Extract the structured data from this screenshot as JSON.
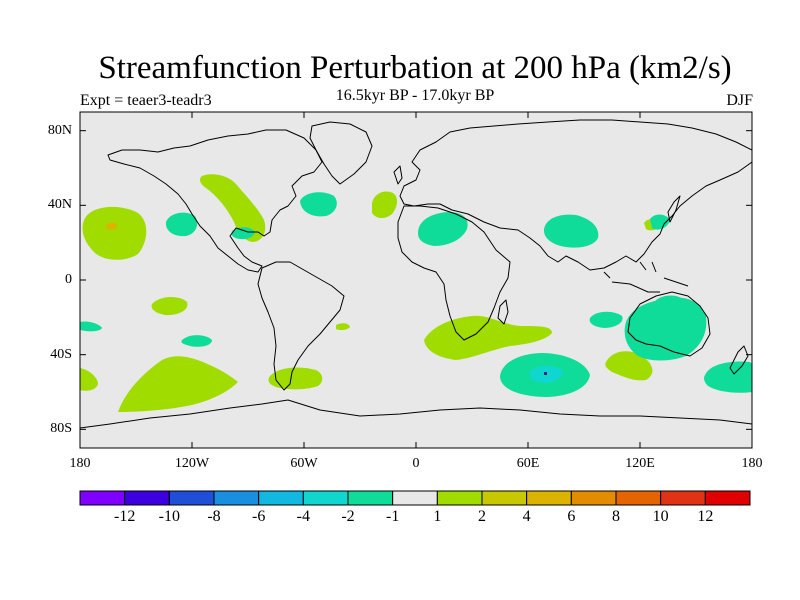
{
  "title": "Streamfunction Perturbation at 200 hPa (km2/s)",
  "subtitle": "16.5kyr BP - 17.0kyr BP",
  "left_label": "Expt = teaer3-teadr3",
  "right_label": "DJF",
  "lat_ticks": [
    {
      "value": 80,
      "label": "80N"
    },
    {
      "value": 40,
      "label": "40N"
    },
    {
      "value": 0,
      "label": "0"
    },
    {
      "value": -40,
      "label": "40S"
    },
    {
      "value": -80,
      "label": "80S"
    }
  ],
  "lon_ticks": [
    {
      "value": -180,
      "label": "180"
    },
    {
      "value": -120,
      "label": "120W"
    },
    {
      "value": -60,
      "label": "60W"
    },
    {
      "value": 0,
      "label": "0"
    },
    {
      "value": 60,
      "label": "60E"
    },
    {
      "value": 120,
      "label": "120E"
    },
    {
      "value": 180,
      "label": "180"
    }
  ],
  "colorbar": {
    "colors": [
      "#7f00ff",
      "#3c00e0",
      "#1f4fd8",
      "#1a8fe0",
      "#11b8e0",
      "#10d6d0",
      "#10dc9a",
      "#e8e8e8",
      "#a0dc00",
      "#c8c800",
      "#dcb400",
      "#e48c00",
      "#e46400",
      "#e03214",
      "#e00000"
    ],
    "labels": [
      "-12",
      "-10",
      "-8",
      "-6",
      "-4",
      "-2",
      "-1",
      "1",
      "2",
      "4",
      "6",
      "8",
      "10",
      "12"
    ]
  },
  "chart_data": {
    "type": "heatmap",
    "title": "Streamfunction Perturbation at 200 hPa (km2/s)",
    "subtitle": "16.5kyr BP - 17.0kyr BP",
    "season": "DJF",
    "experiment": "teaer3-teadr3",
    "projection": "cylindrical equidistant",
    "lon_range": [
      -180,
      180
    ],
    "lat_range": [
      -90,
      90
    ],
    "units": "km2/s",
    "levels": [
      -12,
      -10,
      -8,
      -6,
      -4,
      -2,
      -1,
      1,
      2,
      4,
      6,
      8,
      10,
      12
    ],
    "colors": {
      "neutral": "#e8e8e8",
      "pos2": "#a0dc00",
      "neg2": "#10dc9a",
      "neg4": "#10d6d0",
      "pos4": "#dcb400",
      "neg12": "#0a2a8c",
      "land_outline": "#000000",
      "plot_frame": "#000000"
    },
    "features": [
      {
        "name": "north-pacific-high",
        "sign": "positive",
        "level": 2,
        "center_lon": -168,
        "center_lat": 30,
        "peak": 4
      },
      {
        "name": "subtropical-pacific-low",
        "sign": "negative",
        "level": -2,
        "center_lon": -138,
        "center_lat": 31
      },
      {
        "name": "north-america-ridge",
        "sign": "positive",
        "level": 2,
        "center_lon": -95,
        "center_lat": 40
      },
      {
        "name": "gulf-low",
        "sign": "negative",
        "level": -2,
        "center_lon": -92,
        "center_lat": 27
      },
      {
        "name": "west-atlantic-low",
        "sign": "negative",
        "level": -2,
        "center_lon": -55,
        "center_lat": 42
      },
      {
        "name": "east-atlantic-high",
        "sign": "positive",
        "level": 2,
        "center_lon": -17,
        "center_lat": 41
      },
      {
        "name": "north-africa-low",
        "sign": "negative",
        "level": -2,
        "center_lon": 15,
        "center_lat": 28
      },
      {
        "name": "south-asia-low",
        "sign": "negative",
        "level": -2,
        "center_lon": 83,
        "center_lat": 27
      },
      {
        "name": "east-asia-low",
        "sign": "negative",
        "level": -2,
        "center_lon": 133,
        "center_lat": 30
      },
      {
        "name": "south-pacific-high",
        "sign": "positive",
        "level": 2,
        "center_lon": -136,
        "center_lat": -50
      },
      {
        "name": "south-america-high",
        "sign": "positive",
        "level": 2,
        "center_lon": -62,
        "center_lat": -53
      },
      {
        "name": "south-atlantic-high",
        "sign": "positive",
        "level": 2,
        "center_lon": 40,
        "center_lat": -30
      },
      {
        "name": "south-indian-low",
        "sign": "negative",
        "level": -4,
        "center_lon": 69,
        "center_lat": -50,
        "peak": -12
      },
      {
        "name": "australia-low",
        "sign": "negative",
        "level": -2,
        "center_lon": 142,
        "center_lat": -26
      },
      {
        "name": "southern-ocean-high",
        "sign": "positive",
        "level": 2,
        "center_lon": 116,
        "center_lat": -45
      },
      {
        "name": "tasman-low",
        "sign": "negative",
        "level": -2,
        "center_lon": 170,
        "center_lat": -52
      }
    ]
  }
}
